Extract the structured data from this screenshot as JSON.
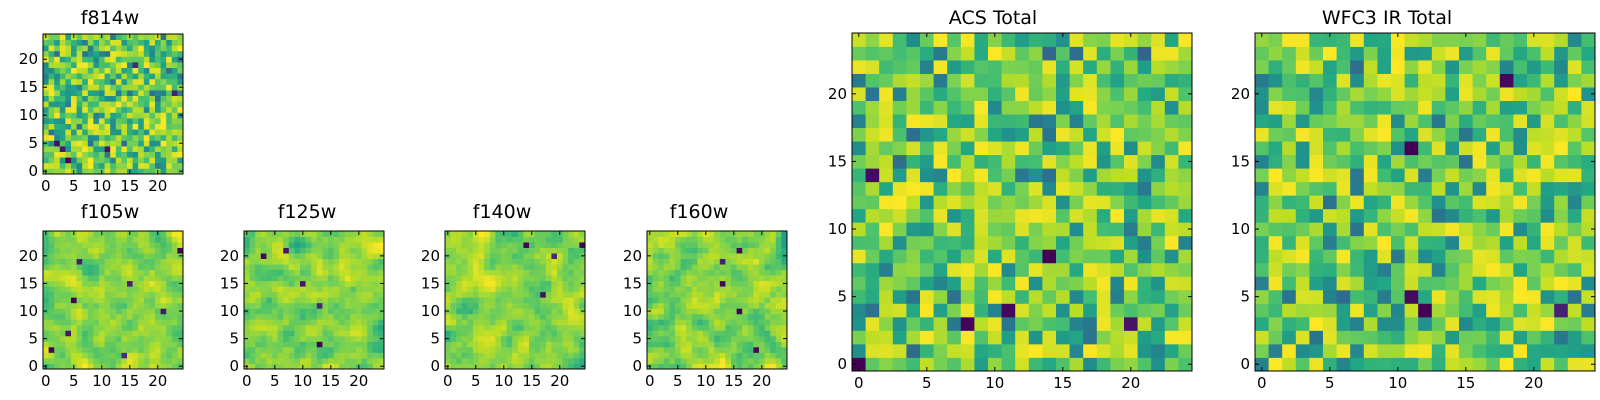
{
  "chart_data": [
    {
      "type": "heatmap",
      "title": "f814w",
      "grid_size": 25,
      "x_ticks": [
        "0",
        "5",
        "10",
        "15",
        "20"
      ],
      "y_ticks": [
        "0",
        "5",
        "10",
        "15",
        "20"
      ],
      "xlim": [
        -0.5,
        24.5
      ],
      "ylim": [
        -0.5,
        24.5
      ],
      "colormap": "viridis",
      "seed": 11,
      "smooth": 0
    },
    {
      "type": "heatmap",
      "title": "f105w",
      "grid_size": 25,
      "x_ticks": [
        "0",
        "5",
        "10",
        "15",
        "20"
      ],
      "y_ticks": [
        "0",
        "5",
        "10",
        "15",
        "20"
      ],
      "xlim": [
        -0.5,
        24.5
      ],
      "ylim": [
        -0.5,
        24.5
      ],
      "colormap": "viridis",
      "seed": 23,
      "smooth": 1
    },
    {
      "type": "heatmap",
      "title": "f125w",
      "grid_size": 25,
      "x_ticks": [
        "0",
        "5",
        "10",
        "15",
        "20"
      ],
      "y_ticks": [
        "0",
        "5",
        "10",
        "15",
        "20"
      ],
      "xlim": [
        -0.5,
        24.5
      ],
      "ylim": [
        -0.5,
        24.5
      ],
      "colormap": "viridis",
      "seed": 37,
      "smooth": 1
    },
    {
      "type": "heatmap",
      "title": "f140w",
      "grid_size": 25,
      "x_ticks": [
        "0",
        "5",
        "10",
        "15",
        "20"
      ],
      "y_ticks": [
        "0",
        "5",
        "10",
        "15",
        "20"
      ],
      "xlim": [
        -0.5,
        24.5
      ],
      "ylim": [
        -0.5,
        24.5
      ],
      "colormap": "viridis",
      "seed": 41,
      "smooth": 1
    },
    {
      "type": "heatmap",
      "title": "f160w",
      "grid_size": 25,
      "x_ticks": [
        "0",
        "5",
        "10",
        "15",
        "20"
      ],
      "y_ticks": [
        "0",
        "5",
        "10",
        "15",
        "20"
      ],
      "xlim": [
        -0.5,
        24.5
      ],
      "ylim": [
        -0.5,
        24.5
      ],
      "colormap": "viridis",
      "seed": 53,
      "smooth": 1
    },
    {
      "type": "heatmap",
      "title": "ACS Total",
      "grid_size": 25,
      "x_ticks": [
        "0",
        "5",
        "10",
        "15",
        "20"
      ],
      "y_ticks": [
        "0",
        "5",
        "10",
        "15",
        "20"
      ],
      "xlim": [
        -0.5,
        24.5
      ],
      "ylim": [
        -0.5,
        24.5
      ],
      "colormap": "viridis",
      "seed": 67,
      "smooth": 0
    },
    {
      "type": "heatmap",
      "title": "WFC3 IR Total",
      "grid_size": 25,
      "x_ticks": [
        "0",
        "5",
        "10",
        "15",
        "20"
      ],
      "y_ticks": [
        "0",
        "5",
        "10",
        "15",
        "20"
      ],
      "xlim": [
        -0.5,
        24.5
      ],
      "ylim": [
        -0.5,
        24.5
      ],
      "colormap": "viridis",
      "seed": 79,
      "smooth": 0
    }
  ]
}
